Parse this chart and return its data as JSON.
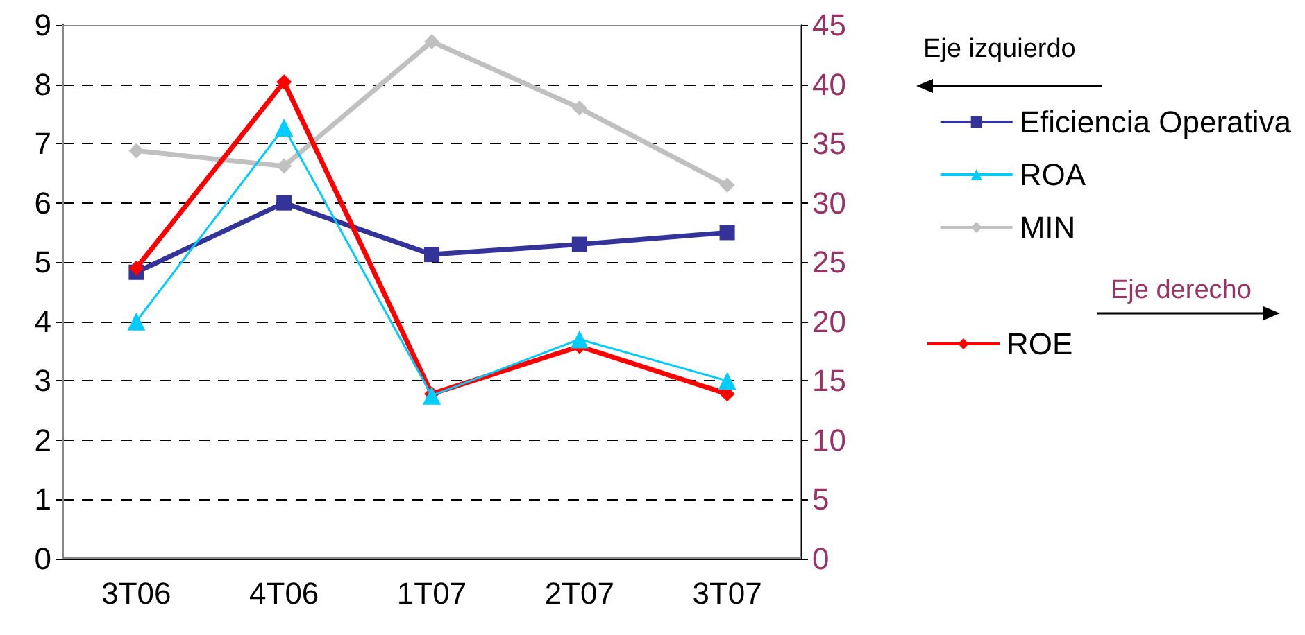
{
  "chart_data": {
    "type": "line",
    "categories": [
      "3T06",
      "4T06",
      "1T07",
      "2T07",
      "3T07"
    ],
    "series": [
      {
        "name": "Eficiencia Operativa",
        "color": "#333399",
        "marker": "square",
        "values": [
          4.83,
          6.0,
          5.13,
          5.3,
          5.5
        ]
      },
      {
        "name": "ROA",
        "color": "#00ccff",
        "marker": "triangle",
        "values": [
          4.0,
          7.27,
          2.75,
          3.7,
          3.0
        ]
      },
      {
        "name": "MIN",
        "color": "#c0c0c0",
        "marker": "diamond",
        "values": [
          6.88,
          6.62,
          8.72,
          7.6,
          6.3
        ]
      },
      {
        "name": "ROE",
        "color": "#ff0000",
        "marker": "diamond",
        "axis": "y2",
        "values": [
          24.5,
          40.2,
          13.9,
          17.9,
          13.9
        ]
      }
    ],
    "ylim": [
      0,
      9
    ],
    "yticks": [
      0,
      1,
      2,
      3,
      4,
      5,
      6,
      7,
      8,
      9
    ],
    "y2lim": [
      0,
      45
    ],
    "y2ticks": [
      0,
      5,
      10,
      15,
      20,
      25,
      30,
      35,
      40,
      45
    ],
    "grid": "y",
    "legend": "right",
    "annotations": [
      "Eje izquierdo",
      "Eje derecho"
    ]
  }
}
